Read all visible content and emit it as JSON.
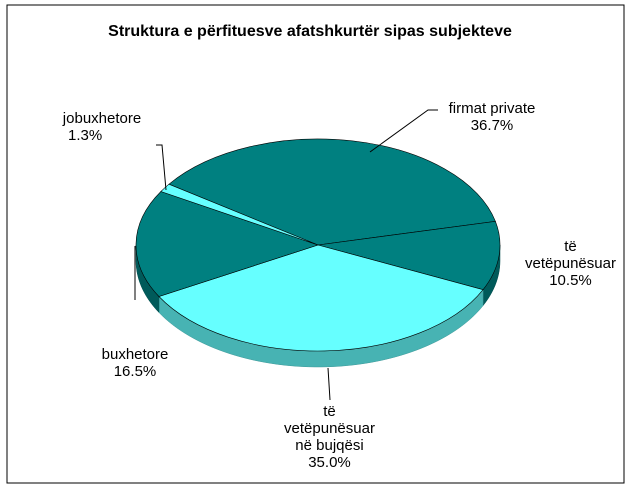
{
  "chart_data": {
    "type": "pie",
    "title": "Struktura e përfituesve afatshkurtër sipas subjekteve",
    "categories": [
      "firmat private",
      "të vetëpunësuar",
      "të vetëpunësuar në bujqësi",
      "buxhetore",
      "jobuxhetore"
    ],
    "values": [
      36.7,
      10.5,
      35.0,
      16.5,
      1.3
    ],
    "value_labels": [
      "36.7%",
      "10.5%",
      "35.0%",
      "16.5%",
      "1.3%"
    ],
    "colors": [
      "#008080",
      "#008080",
      "#66ffff",
      "#008080",
      "#66ffff"
    ]
  }
}
